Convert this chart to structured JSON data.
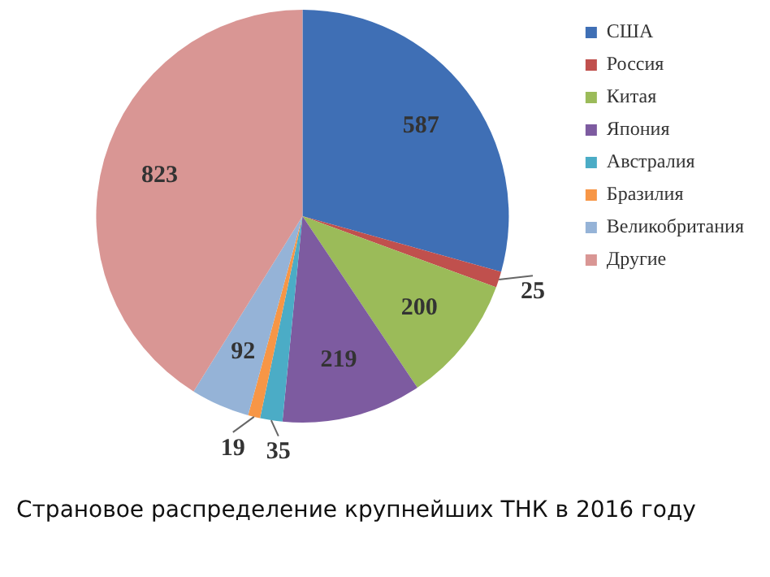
{
  "chart_data": {
    "type": "pie",
    "categories": [
      "США",
      "Россия",
      "Китая",
      "Япония",
      "Австралия",
      "Бразилия",
      "Великобритания",
      "Другие"
    ],
    "values": [
      587,
      25,
      200,
      219,
      35,
      19,
      92,
      823
    ],
    "colors": [
      "#3f6fb5",
      "#c0504d",
      "#9bbb59",
      "#7d5ba0",
      "#4bacc6",
      "#f79646",
      "#95b3d7",
      "#d99694"
    ],
    "data_labels": true,
    "legend": "right",
    "annotations": [
      "Страновое распределение крупнейших ТНК в 2016 году"
    ]
  }
}
